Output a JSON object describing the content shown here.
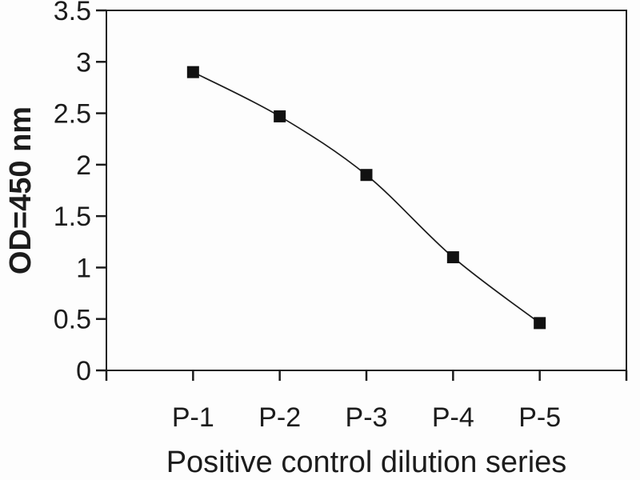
{
  "chart_data": {
    "type": "line",
    "categories": [
      "P-1",
      "P-2",
      "P-3",
      "P-4",
      "P-5"
    ],
    "values": [
      2.9,
      2.47,
      1.9,
      1.1,
      0.46
    ],
    "title": "",
    "xlabel": "Positive control dilution series",
    "ylabel": "OD=450 nm",
    "ylim": [
      0,
      3.5
    ],
    "ytick_step": 0.5,
    "y_tick_labels": [
      "0",
      "0.5",
      "1",
      "1.5",
      "2",
      "2.5",
      "3",
      "3.5"
    ],
    "grid": "off",
    "legend": "none",
    "marker": "filled-square",
    "smooth": true,
    "colors": {
      "ink": "#1c1c1c",
      "marker": "#111111",
      "background": "#fdfdfd"
    }
  }
}
